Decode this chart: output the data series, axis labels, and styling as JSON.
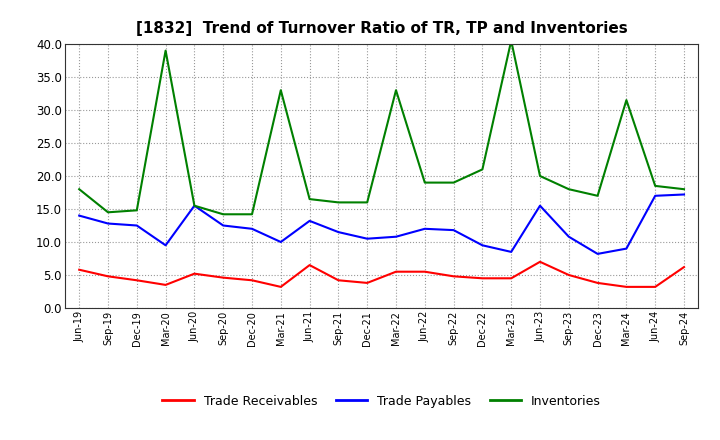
{
  "title": "[1832]  Trend of Turnover Ratio of TR, TP and Inventories",
  "x_labels": [
    "Jun-19",
    "Sep-19",
    "Dec-19",
    "Mar-20",
    "Jun-20",
    "Sep-20",
    "Dec-20",
    "Mar-21",
    "Jun-21",
    "Sep-21",
    "Dec-21",
    "Mar-22",
    "Jun-22",
    "Sep-22",
    "Dec-22",
    "Mar-23",
    "Jun-23",
    "Sep-23",
    "Dec-23",
    "Mar-24",
    "Jun-24",
    "Sep-24"
  ],
  "trade_receivables": [
    5.8,
    4.8,
    4.2,
    3.5,
    5.2,
    4.6,
    4.2,
    3.2,
    6.5,
    4.2,
    3.8,
    5.5,
    5.5,
    4.8,
    4.5,
    4.5,
    7.0,
    5.0,
    3.8,
    3.2,
    3.2,
    6.2
  ],
  "trade_payables": [
    14.0,
    12.8,
    12.5,
    9.5,
    15.5,
    12.5,
    12.0,
    10.0,
    13.2,
    11.5,
    10.5,
    10.8,
    12.0,
    11.8,
    9.5,
    8.5,
    15.5,
    10.8,
    8.2,
    9.0,
    17.0,
    17.2
  ],
  "inventories": [
    18.0,
    14.5,
    14.8,
    39.0,
    15.5,
    14.2,
    14.2,
    33.0,
    16.5,
    16.0,
    16.0,
    33.0,
    19.0,
    19.0,
    21.0,
    40.5,
    20.0,
    18.0,
    17.0,
    31.5,
    18.5,
    18.0
  ],
  "ylim": [
    0.0,
    40.0
  ],
  "yticks": [
    0.0,
    5.0,
    10.0,
    15.0,
    20.0,
    25.0,
    30.0,
    35.0,
    40.0
  ],
  "color_tr": "#ff0000",
  "color_tp": "#0000ff",
  "color_inv": "#008000",
  "background_color": "#ffffff",
  "grid_color": "#999999",
  "legend_labels": [
    "Trade Receivables",
    "Trade Payables",
    "Inventories"
  ]
}
